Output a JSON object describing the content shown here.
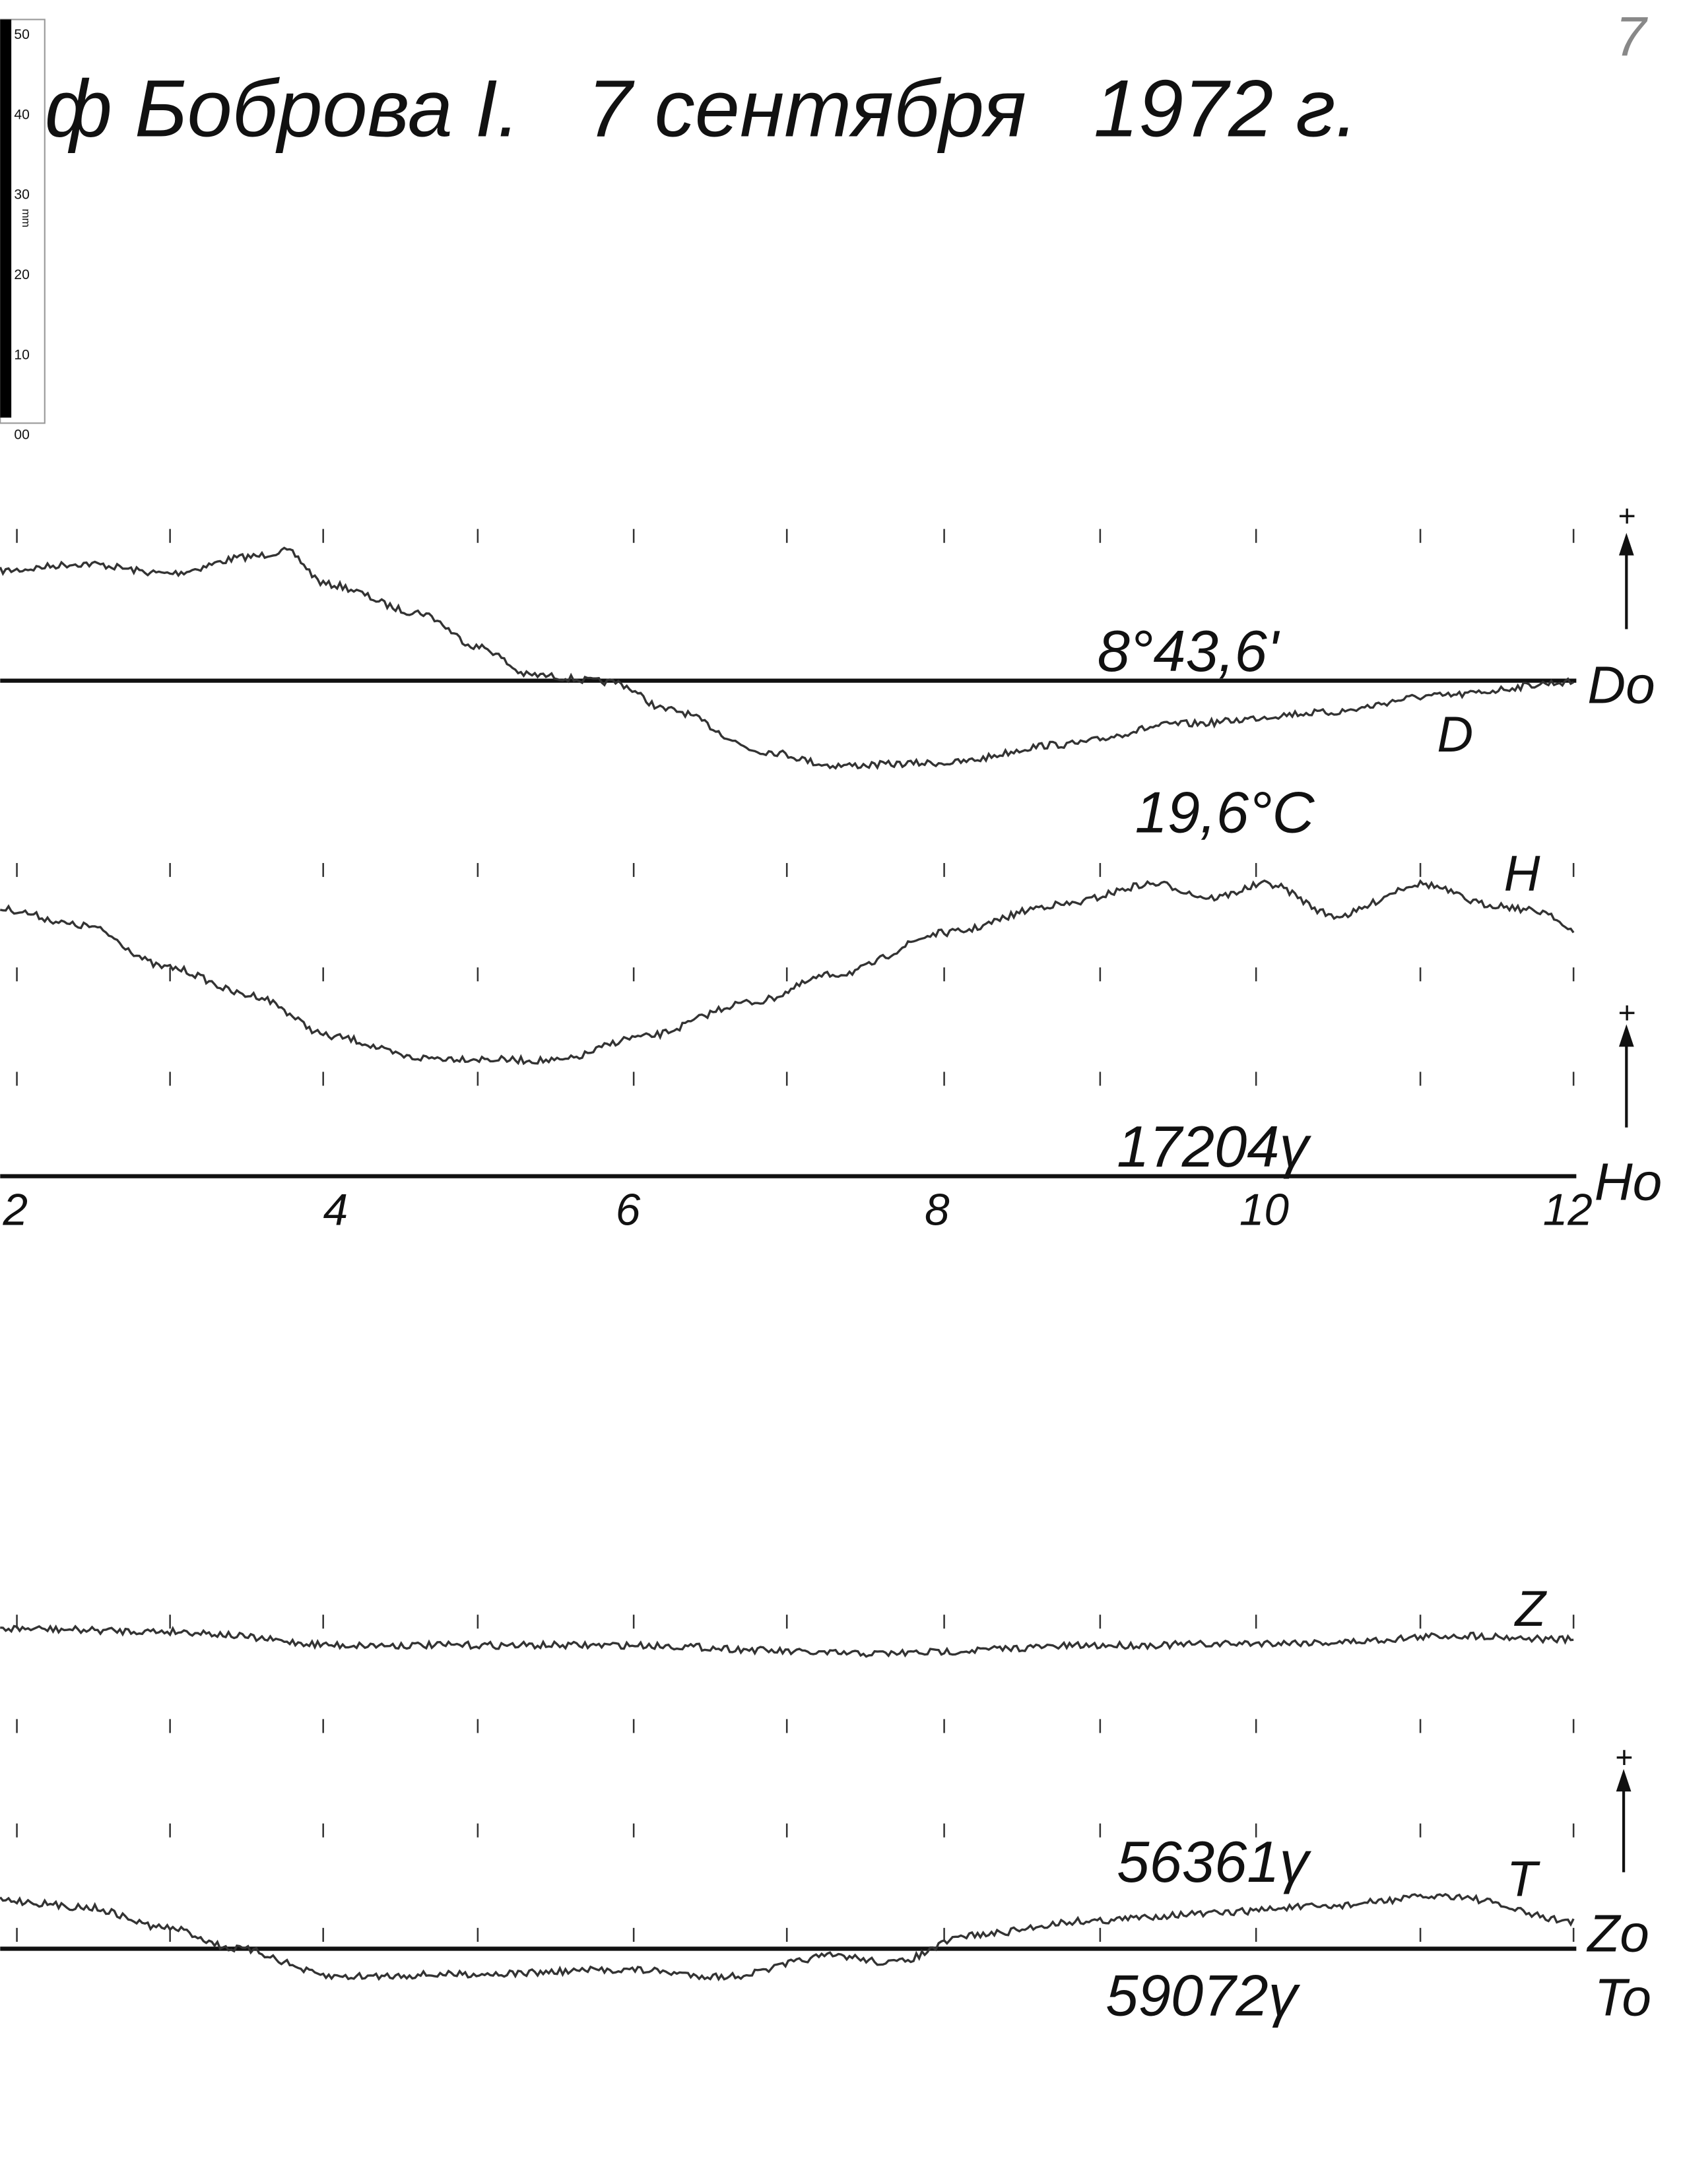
{
  "header": {
    "title": "ф Боброва I.   7 сентября   1972 г.",
    "page_number": "7"
  },
  "ruler": {
    "labels": [
      "50",
      "40",
      "30",
      "20",
      "10",
      "00"
    ],
    "unit": "mm"
  },
  "traces": {
    "d": {
      "label": "D",
      "baseline_label": "Do",
      "baseline_value": "8°43,6'"
    },
    "temperature": {
      "label": "19,6°C"
    },
    "h": {
      "label": "H",
      "baseline_label": "Ho",
      "baseline_value": "17204γ"
    },
    "z": {
      "label": "Z",
      "baseline_label": "Zo",
      "baseline_value": "56361γ"
    },
    "t": {
      "label": "T",
      "baseline_label": "To",
      "baseline_value": "59072γ"
    }
  },
  "hours": [
    "2",
    "4",
    "6",
    "8",
    "10",
    "12"
  ],
  "direction_marks": [
    "+",
    "+",
    "+"
  ]
}
